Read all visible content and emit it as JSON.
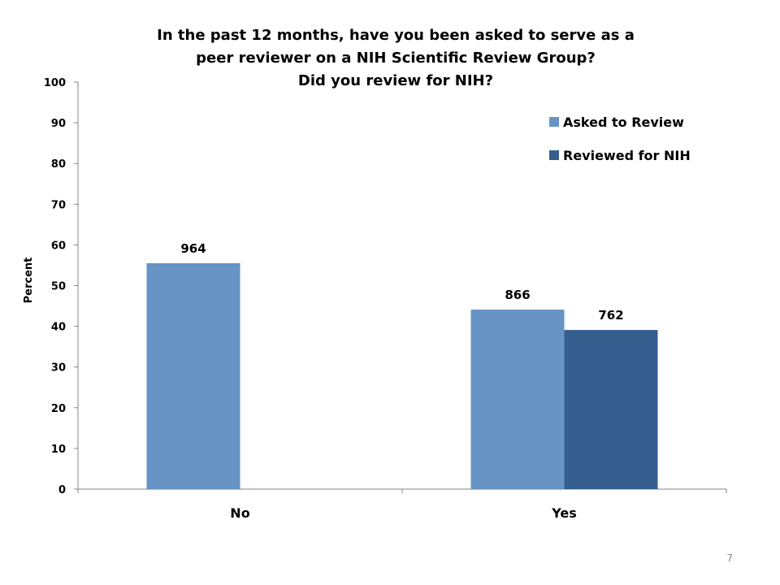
{
  "chart_data": {
    "type": "bar",
    "title_lines": [
      "In the past 12 months, have you been asked to serve as a",
      "peer reviewer on a NIH Scientific Review Group?",
      "Did you review for NIH?"
    ],
    "ylabel": "Percent",
    "xlabel": "",
    "ylim": [
      0,
      100
    ],
    "yticks": [
      0,
      10,
      20,
      30,
      40,
      50,
      60,
      70,
      80,
      90,
      100
    ],
    "categories": [
      "No",
      "Yes"
    ],
    "series": [
      {
        "name": "Asked to Review",
        "color": "#6793C5",
        "values": [
          55.5,
          44.1
        ],
        "labels": [
          "964",
          "866"
        ]
      },
      {
        "name": "Reviewed for NIH",
        "color": "#355E8F",
        "values": [
          null,
          39.1
        ],
        "labels": [
          null,
          "762"
        ]
      }
    ],
    "legend_position": "top-right",
    "grid": false
  },
  "page_number": "7"
}
